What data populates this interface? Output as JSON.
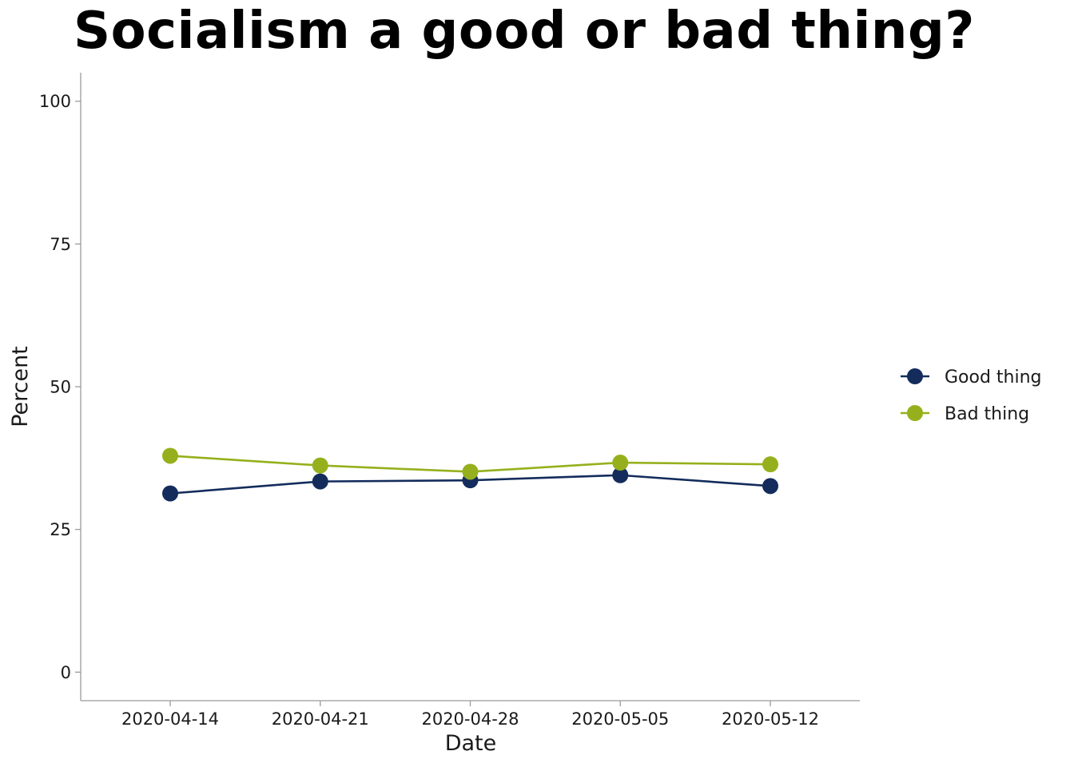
{
  "chart_data": {
    "type": "line",
    "title": "Socialism a good or bad thing?",
    "xlabel": "Date",
    "ylabel": "Percent",
    "ylim": [
      -5,
      105
    ],
    "yticks": [
      0,
      25,
      50,
      75,
      100
    ],
    "categories": [
      "2020-04-14",
      "2020-04-21",
      "2020-04-28",
      "2020-05-05",
      "2020-05-12"
    ],
    "series": [
      {
        "name": "Good thing",
        "color": "#142c5c",
        "values": [
          31.3,
          33.4,
          33.6,
          34.5,
          32.6
        ]
      },
      {
        "name": "Bad thing",
        "color": "#95b01c",
        "values": [
          37.9,
          36.2,
          35.1,
          36.7,
          36.4
        ]
      }
    ],
    "grid": false,
    "legend_position": "right"
  }
}
